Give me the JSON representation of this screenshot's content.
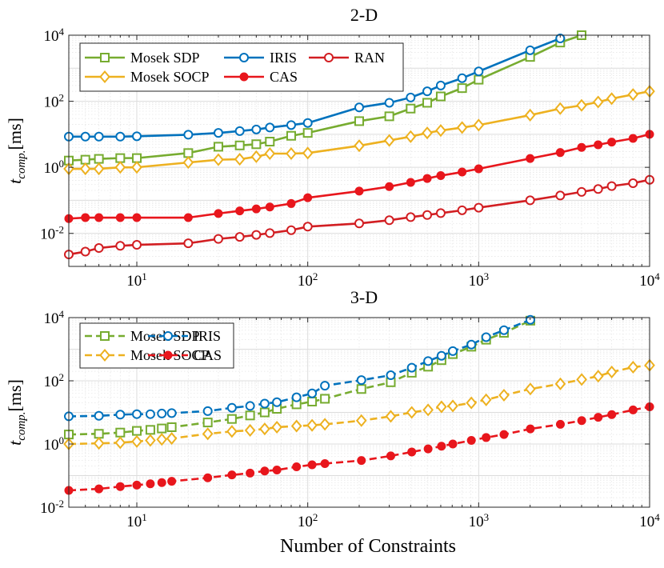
{
  "figure": {
    "xlabel": "Number of Constraints"
  },
  "colors": {
    "sdp": "#77ac30",
    "socp": "#edb120",
    "iris": "#0072bd",
    "cas": "#e8161c",
    "ran": "#d21e22"
  },
  "chart_data": [
    {
      "type": "line",
      "title": "2-D",
      "xscale": "log",
      "yscale": "log",
      "xlim": [
        4,
        10000
      ],
      "ylim": [
        0.001,
        10000
      ],
      "xticks": [
        10,
        100,
        1000,
        10000
      ],
      "xtick_labels": [
        {
          "base": "10",
          "exp": "1"
        },
        {
          "base": "10",
          "exp": "2"
        },
        {
          "base": "10",
          "exp": "3"
        },
        {
          "base": "10",
          "exp": "4"
        }
      ],
      "yticks": [
        0.01,
        1,
        100,
        10000
      ],
      "ytick_labels": [
        {
          "base": "10",
          "exp": "-2"
        },
        {
          "base": "10",
          "exp": "0"
        },
        {
          "base": "10",
          "exp": "2"
        },
        {
          "base": "10",
          "exp": "4"
        }
      ],
      "ylabel": {
        "main": "t",
        "sub": "comp.",
        "unit": "[ms]"
      },
      "grid": true,
      "legend": {
        "placement": "top-left",
        "columns": 3
      },
      "series": [
        {
          "name": "Mosek SDP",
          "color_key": "sdp",
          "marker": "square",
          "dashed": false,
          "x": [
            4,
            5,
            6,
            8,
            10,
            20,
            30,
            40,
            50,
            60,
            80,
            100,
            200,
            300,
            400,
            500,
            600,
            800,
            1000,
            2000,
            3000,
            4000
          ],
          "y": [
            1.6,
            1.7,
            1.8,
            1.9,
            1.9,
            2.7,
            4.2,
            4.6,
            5.0,
            6.0,
            9.0,
            11,
            25,
            35,
            60,
            90,
            140,
            250,
            450,
            2200,
            6000,
            10000
          ]
        },
        {
          "name": "IRIS",
          "color_key": "iris",
          "marker": "circle",
          "dashed": false,
          "x": [
            4,
            5,
            6,
            8,
            10,
            20,
            30,
            40,
            50,
            60,
            80,
            100,
            200,
            300,
            400,
            500,
            600,
            800,
            1000,
            2000,
            3000
          ],
          "y": [
            8.5,
            8.5,
            8.5,
            8.5,
            8.7,
            9.7,
            11,
            12.5,
            14,
            16,
            19,
            22,
            65,
            90,
            130,
            200,
            300,
            500,
            800,
            3500,
            8000
          ]
        },
        {
          "name": "RAN",
          "color_key": "ran",
          "marker": "circle",
          "dashed": false,
          "x": [
            4,
            5,
            6,
            8,
            10,
            20,
            30,
            40,
            50,
            60,
            80,
            100,
            200,
            300,
            400,
            500,
            600,
            800,
            1000,
            2000,
            3000,
            4000,
            5000,
            6000,
            8000,
            10000
          ],
          "y": [
            0.0023,
            0.0028,
            0.0036,
            0.0042,
            0.0045,
            0.005,
            0.0068,
            0.0078,
            0.009,
            0.0102,
            0.0125,
            0.016,
            0.02,
            0.025,
            0.031,
            0.036,
            0.041,
            0.05,
            0.06,
            0.1,
            0.14,
            0.18,
            0.22,
            0.27,
            0.33,
            0.42
          ]
        },
        {
          "name": "Mosek SOCP",
          "color_key": "socp",
          "marker": "diamond",
          "dashed": false,
          "x": [
            4,
            5,
            6,
            8,
            10,
            20,
            30,
            40,
            50,
            60,
            80,
            100,
            200,
            300,
            400,
            500,
            600,
            800,
            1000,
            2000,
            3000,
            4000,
            5000,
            6000,
            8000,
            10000
          ],
          "y": [
            0.9,
            0.9,
            0.9,
            1.0,
            1.0,
            1.4,
            1.7,
            1.75,
            2.1,
            2.6,
            2.6,
            2.7,
            4.5,
            6.5,
            8.5,
            11,
            13,
            16,
            19,
            38,
            60,
            75,
            95,
            120,
            160,
            200
          ]
        },
        {
          "name": "CAS",
          "color_key": "cas",
          "marker": "filled-circle",
          "dashed": false,
          "x": [
            4,
            5,
            6,
            8,
            10,
            20,
            30,
            40,
            50,
            60,
            80,
            100,
            200,
            300,
            400,
            500,
            600,
            800,
            1000,
            2000,
            3000,
            4000,
            5000,
            6000,
            8000,
            10000
          ],
          "y": [
            0.028,
            0.03,
            0.03,
            0.03,
            0.03,
            0.03,
            0.04,
            0.048,
            0.055,
            0.063,
            0.08,
            0.12,
            0.19,
            0.26,
            0.35,
            0.46,
            0.56,
            0.72,
            0.9,
            1.85,
            2.8,
            4.0,
            4.8,
            5.8,
            7.5,
            10
          ]
        }
      ]
    },
    {
      "type": "line",
      "title": "3-D",
      "xscale": "log",
      "yscale": "log",
      "xlim": [
        4,
        10000
      ],
      "ylim": [
        0.01,
        10000
      ],
      "xticks": [
        10,
        100,
        1000,
        10000
      ],
      "xtick_labels": [
        {
          "base": "10",
          "exp": "1"
        },
        {
          "base": "10",
          "exp": "2"
        },
        {
          "base": "10",
          "exp": "3"
        },
        {
          "base": "10",
          "exp": "4"
        }
      ],
      "yticks": [
        0.01,
        1,
        100,
        10000
      ],
      "ytick_labels": [
        {
          "base": "10",
          "exp": "-2"
        },
        {
          "base": "10",
          "exp": "0"
        },
        {
          "base": "10",
          "exp": "2"
        },
        {
          "base": "10",
          "exp": "4"
        }
      ],
      "ylabel": {
        "main": "t",
        "sub": "comp.",
        "unit": "[ms]"
      },
      "grid": true,
      "legend": {
        "placement": "top-left",
        "columns": 2
      },
      "series": [
        {
          "name": "Mosek SDP",
          "color_key": "sdp",
          "marker": "square",
          "dashed": true,
          "x": [
            4,
            6,
            8,
            10,
            12,
            14,
            16,
            26,
            36,
            46,
            56,
            66,
            86,
            106,
            126,
            206,
            306,
            406,
            506,
            606,
            706,
            906,
            1106,
            1406,
            2006
          ],
          "y": [
            2.0,
            2.1,
            2.3,
            2.6,
            2.8,
            3.1,
            3.4,
            4.8,
            6.2,
            8.0,
            10,
            13,
            18,
            22,
            27,
            55,
            90,
            180,
            280,
            450,
            700,
            1200,
            2000,
            3300,
            8000
          ]
        },
        {
          "name": "IRIS",
          "color_key": "iris",
          "marker": "circle",
          "dashed": true,
          "x": [
            4,
            6,
            8,
            10,
            12,
            14,
            16,
            26,
            36,
            46,
            56,
            66,
            86,
            106,
            126,
            206,
            306,
            406,
            506,
            606,
            706,
            906,
            1106,
            1406,
            2006
          ],
          "y": [
            7.5,
            7.8,
            8.5,
            8.8,
            8.8,
            9.2,
            9.5,
            11,
            14,
            16,
            19,
            21,
            30,
            40,
            70,
            105,
            150,
            260,
            420,
            620,
            870,
            1400,
            2400,
            4000,
            8500
          ]
        },
        {
          "name": "Mosek SOCP",
          "color_key": "socp",
          "marker": "diamond",
          "dashed": true,
          "x": [
            4,
            6,
            8,
            10,
            12,
            14,
            16,
            26,
            36,
            46,
            56,
            66,
            86,
            106,
            126,
            206,
            306,
            406,
            506,
            606,
            706,
            906,
            1106,
            1406,
            2006,
            3006,
            4006,
            5006,
            6006,
            8006,
            10006
          ],
          "y": [
            1.0,
            1.05,
            1.1,
            1.2,
            1.3,
            1.4,
            1.5,
            2.1,
            2.5,
            2.7,
            3.0,
            3.4,
            3.7,
            3.9,
            4.2,
            5.5,
            7.5,
            10,
            12,
            15,
            16,
            20,
            25,
            35,
            55,
            80,
            110,
            140,
            190,
            270,
            310
          ]
        },
        {
          "name": "CAS",
          "color_key": "cas",
          "marker": "filled-circle",
          "dashed": true,
          "x": [
            4,
            6,
            8,
            10,
            12,
            14,
            16,
            26,
            36,
            46,
            56,
            66,
            86,
            106,
            126,
            206,
            306,
            406,
            506,
            606,
            706,
            906,
            1106,
            1406,
            2006,
            3006,
            4006,
            5006,
            6006,
            8006,
            10006
          ],
          "y": [
            0.034,
            0.038,
            0.045,
            0.05,
            0.055,
            0.06,
            0.066,
            0.085,
            0.105,
            0.12,
            0.14,
            0.15,
            0.19,
            0.22,
            0.24,
            0.3,
            0.42,
            0.56,
            0.7,
            0.85,
            1.0,
            1.3,
            1.6,
            2.0,
            3.0,
            4.2,
            5.5,
            7.0,
            8.5,
            12,
            15
          ]
        }
      ]
    }
  ]
}
